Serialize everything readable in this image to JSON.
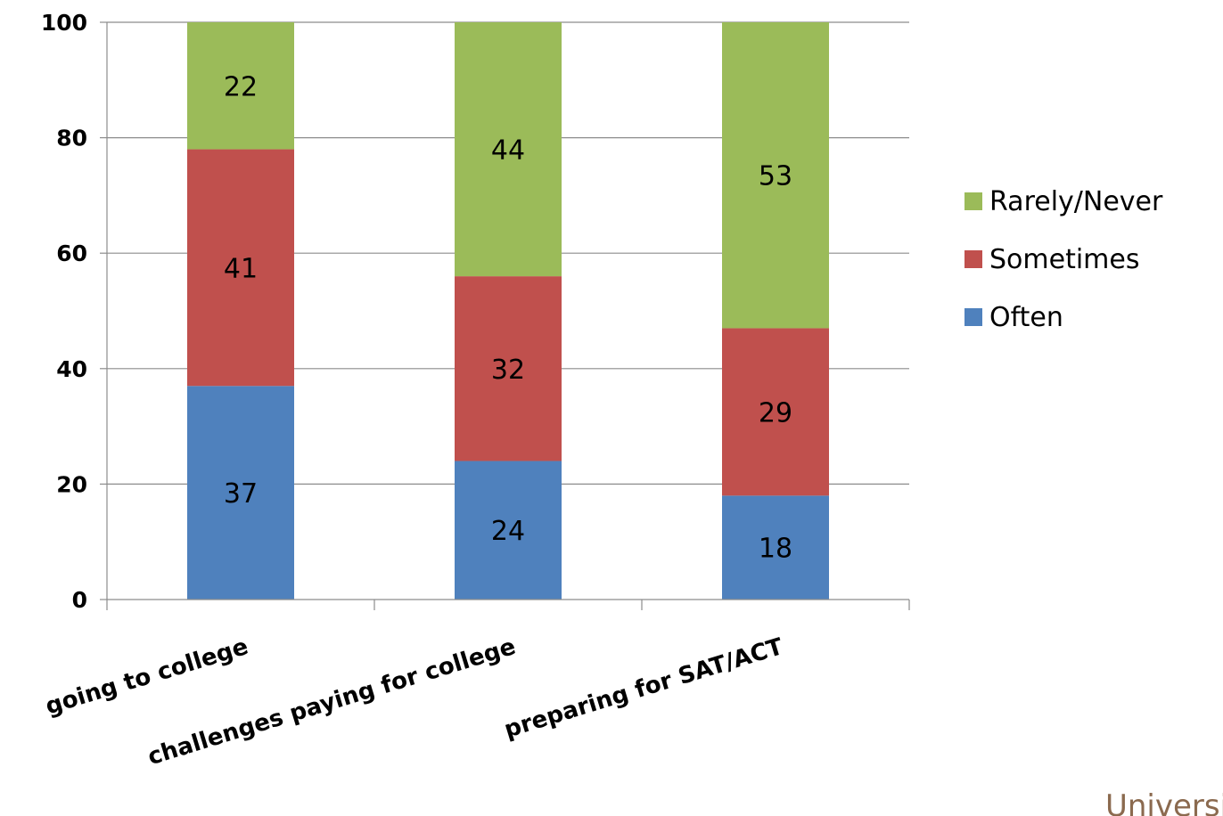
{
  "chart_data": {
    "type": "bar",
    "stacked": true,
    "categories": [
      "going to college",
      "challenges paying for college",
      "preparing for SAT/ACT"
    ],
    "series": [
      {
        "name": "Often",
        "values": [
          37,
          24,
          18
        ],
        "color": "#4f81bd"
      },
      {
        "name": "Sometimes",
        "values": [
          41,
          32,
          29
        ],
        "color": "#c0504d"
      },
      {
        "name": "Rarely/Never",
        "values": [
          22,
          44,
          53
        ],
        "color": "#9bbb59"
      }
    ],
    "ylim": [
      0,
      100
    ],
    "yticks": [
      0,
      20,
      40,
      60,
      80,
      100
    ],
    "grid": true,
    "legend": "right",
    "title": "",
    "xlabel": "",
    "ylabel": ""
  },
  "watermark_text": "University <ld"
}
